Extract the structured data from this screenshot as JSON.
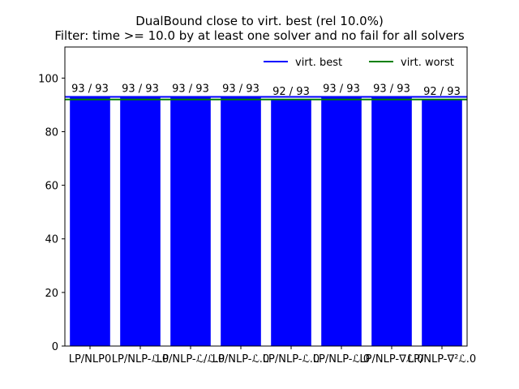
{
  "title_line1": "DualBound close to virt. best (rel 10.0%)",
  "title_line2": "Filter: time >= 10.0 by at least one solver and no fail for all solvers",
  "chart_data": {
    "type": "bar",
    "categories": [
      "LP/NLP0",
      "LP/NLP-ℒ.0",
      "LP/NLP-ℒ/ℒ.0",
      "LP/NLP-ℒ.0",
      "LP/NLP-ℒ.0",
      "LP/NLP-ℒ.0",
      "LP/NLP-∇ℒ.0",
      "LP/NLP-∇²ℒ.0"
    ],
    "values": [
      93,
      93,
      93,
      93,
      92,
      93,
      93,
      92
    ],
    "bar_labels": [
      "93 / 93",
      "93 / 93",
      "93 / 93",
      "93 / 93",
      "92 / 93",
      "93 / 93",
      "93 / 93",
      "92 / 93"
    ],
    "bar_color": "#0000ff",
    "ylim": [
      0,
      111.6
    ],
    "yticks": [
      0,
      20,
      40,
      60,
      80,
      100
    ],
    "grid": false,
    "lines": [
      {
        "name": "virt. best",
        "value": 93,
        "color": "#0000ff"
      },
      {
        "name": "virt. worst",
        "value": 92,
        "color": "#008000"
      }
    ],
    "legend_position": "top-right"
  }
}
